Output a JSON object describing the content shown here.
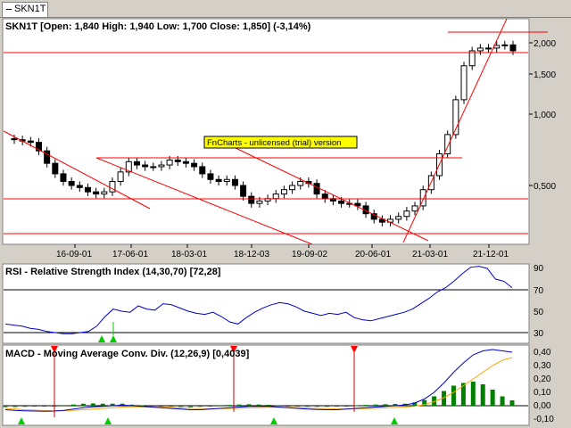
{
  "tab": {
    "label": "SKN1T"
  },
  "main_panel": {
    "title": "SKN1T [Open: 1,840  High: 1,940  Low: 1,700  Close: 1,850] (-3,14%)",
    "watermark": "FnCharts - unlicensed (trial) version",
    "y_ticks": [
      "2,000",
      "1,500",
      "1,000",
      "0,500"
    ],
    "x_ticks": [
      "16-09-01",
      "17-06-01",
      "18-03-01",
      "18-12-03",
      "19-09-02",
      "20-06-01",
      "21-03-01",
      "21-12-01"
    ]
  },
  "rsi_panel": {
    "title": "RSI - Relative Strength Index (14,30,70) [72,28]",
    "y_ticks": [
      "90",
      "70",
      "50",
      "30"
    ]
  },
  "macd_panel": {
    "title": "MACD - Moving Average Conv. Div. (12,26,9) [0,4039]",
    "y_ticks": [
      "0,40",
      "0,30",
      "0,20",
      "0,10",
      "0,00",
      "-0,10"
    ]
  },
  "colors": {
    "background": "#d4d0c8",
    "panel": "#ffffff",
    "trendline": "#ff0000",
    "rsi_line": "#0000cc",
    "macd_line": "#0000cc",
    "signal_line": "#ffa500",
    "histogram": "#008000",
    "buy_marker": "#00cc00",
    "sell_marker": "#ff0000",
    "watermark_bg": "#ffff00"
  },
  "chart_data": {
    "type": "candlestick",
    "symbol": "SKN1T",
    "ohlc_last": {
      "open": 1.84,
      "high": 1.94,
      "low": 1.7,
      "close": 1.85,
      "change_pct": -3.14
    },
    "close": [
      0.78,
      0.77,
      0.76,
      0.7,
      0.62,
      0.56,
      0.52,
      0.5,
      0.49,
      0.47,
      0.46,
      0.47,
      0.52,
      0.57,
      0.63,
      0.61,
      0.6,
      0.6,
      0.61,
      0.64,
      0.63,
      0.62,
      0.6,
      0.56,
      0.53,
      0.52,
      0.53,
      0.5,
      0.45,
      0.42,
      0.43,
      0.44,
      0.46,
      0.48,
      0.5,
      0.52,
      0.51,
      0.46,
      0.44,
      0.43,
      0.42,
      0.42,
      0.41,
      0.38,
      0.36,
      0.35,
      0.36,
      0.37,
      0.39,
      0.41,
      0.48,
      0.55,
      0.68,
      0.82,
      1.15,
      1.6,
      1.85,
      1.9,
      1.9,
      1.95,
      1.96,
      1.85
    ],
    "rsi": [
      38,
      37,
      36,
      34,
      33,
      31,
      30,
      29,
      29,
      30,
      31,
      36,
      45,
      52,
      50,
      49,
      55,
      52,
      51,
      57,
      56,
      53,
      50,
      48,
      47,
      49,
      45,
      40,
      38,
      44,
      49,
      53,
      56,
      58,
      57,
      54,
      50,
      48,
      46,
      48,
      47,
      49,
      44,
      42,
      41,
      43,
      45,
      47,
      49,
      52,
      57,
      62,
      68,
      72,
      78,
      85,
      91,
      92,
      90,
      80,
      78,
      72
    ],
    "macd": [
      -0.03,
      -0.035,
      -0.038,
      -0.04,
      -0.042,
      -0.04,
      -0.035,
      -0.025,
      -0.015,
      -0.008,
      -0.005,
      0.0,
      0.005,
      0.0,
      -0.005,
      -0.01,
      -0.015,
      -0.02,
      -0.025,
      -0.03,
      -0.03,
      -0.025,
      -0.02,
      -0.015,
      -0.01,
      -0.005,
      -0.005,
      -0.005,
      -0.01,
      -0.015,
      -0.02,
      -0.025,
      -0.028,
      -0.03,
      -0.03,
      -0.025,
      -0.02,
      -0.015,
      -0.01,
      -0.005,
      0.0,
      0.005,
      0.02,
      0.05,
      0.1,
      0.17,
      0.25,
      0.32,
      0.38,
      0.41,
      0.42,
      0.41,
      0.4
    ],
    "signal": [
      -0.02,
      -0.025,
      -0.03,
      -0.033,
      -0.036,
      -0.038,
      -0.037,
      -0.034,
      -0.03,
      -0.025,
      -0.02,
      -0.015,
      -0.01,
      -0.008,
      -0.008,
      -0.009,
      -0.011,
      -0.013,
      -0.016,
      -0.019,
      -0.022,
      -0.023,
      -0.022,
      -0.021,
      -0.019,
      -0.016,
      -0.014,
      -0.012,
      -0.012,
      -0.013,
      -0.015,
      -0.017,
      -0.02,
      -0.022,
      -0.024,
      -0.024,
      -0.023,
      -0.021,
      -0.019,
      -0.016,
      -0.013,
      -0.01,
      -0.004,
      0.008,
      0.03,
      0.06,
      0.1,
      0.15,
      0.2,
      0.25,
      0.3,
      0.34,
      0.36
    ]
  }
}
